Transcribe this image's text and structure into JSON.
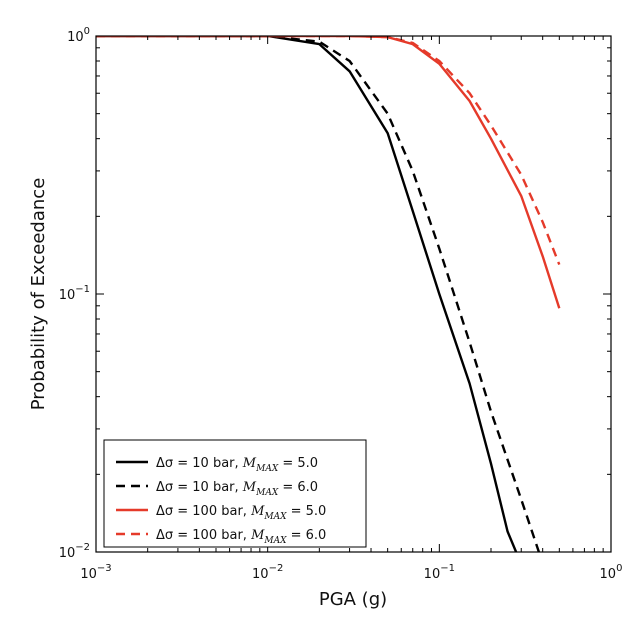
{
  "chart_data": {
    "type": "line",
    "xlabel": "PGA (g)",
    "ylabel": "Probability of Exceedance",
    "xscale": "log",
    "yscale": "log",
    "xlim": [
      0.001,
      1
    ],
    "ylim": [
      0.01,
      1
    ],
    "grid": false,
    "legend_position": "bottom-left",
    "x_ticks": [
      {
        "value": 0.001,
        "base": "10",
        "exp": "−3"
      },
      {
        "value": 0.01,
        "base": "10",
        "exp": "−2"
      },
      {
        "value": 0.1,
        "base": "10",
        "exp": "−1"
      },
      {
        "value": 1,
        "base": "10",
        "exp": "0"
      }
    ],
    "y_ticks": [
      {
        "value": 0.01,
        "base": "10",
        "exp": "−2"
      },
      {
        "value": 0.1,
        "base": "10",
        "exp": "−1"
      },
      {
        "value": 1,
        "base": "10",
        "exp": "0"
      }
    ],
    "series": [
      {
        "name": "Δσ = 10 bar, M_MAX = 5.0",
        "legend": {
          "prefix": "Δσ = 10 bar, ",
          "m": "M",
          "sub": "MAX",
          "suffix": " = 5.0"
        },
        "color": "#000000",
        "dash": "solid",
        "x": [
          0.001,
          0.01,
          0.02,
          0.03,
          0.05,
          0.07,
          0.1,
          0.15,
          0.2,
          0.25,
          0.28
        ],
        "y": [
          1.0,
          1.0,
          0.93,
          0.73,
          0.42,
          0.21,
          0.1,
          0.045,
          0.022,
          0.012,
          0.01
        ]
      },
      {
        "name": "Δσ = 10 bar, M_MAX = 6.0",
        "legend": {
          "prefix": "Δσ = 10 bar, ",
          "m": "M",
          "sub": "MAX",
          "suffix": " = 6.0"
        },
        "color": "#000000",
        "dash": "dashed",
        "x": [
          0.001,
          0.01,
          0.02,
          0.03,
          0.05,
          0.07,
          0.1,
          0.15,
          0.2,
          0.3,
          0.38
        ],
        "y": [
          1.0,
          1.0,
          0.95,
          0.8,
          0.5,
          0.3,
          0.15,
          0.065,
          0.035,
          0.016,
          0.01
        ]
      },
      {
        "name": "Δσ = 100 bar, M_MAX = 5.0",
        "legend": {
          "prefix": "Δσ = 100 bar, ",
          "m": "M",
          "sub": "MAX",
          "suffix": " = 5.0"
        },
        "color": "#e53a2a",
        "dash": "solid",
        "x": [
          0.001,
          0.03,
          0.05,
          0.07,
          0.1,
          0.15,
          0.2,
          0.3,
          0.4,
          0.5
        ],
        "y": [
          1.0,
          1.0,
          0.99,
          0.93,
          0.78,
          0.56,
          0.4,
          0.24,
          0.14,
          0.088
        ]
      },
      {
        "name": "Δσ = 100 bar, M_MAX = 6.0",
        "legend": {
          "prefix": "Δσ = 100 bar, ",
          "m": "M",
          "sub": "MAX",
          "suffix": " = 6.0"
        },
        "color": "#e53a2a",
        "dash": "dashed",
        "x": [
          0.001,
          0.03,
          0.05,
          0.07,
          0.1,
          0.15,
          0.2,
          0.3,
          0.4,
          0.5
        ],
        "y": [
          1.0,
          1.0,
          0.99,
          0.94,
          0.8,
          0.6,
          0.45,
          0.29,
          0.19,
          0.13
        ]
      }
    ]
  }
}
